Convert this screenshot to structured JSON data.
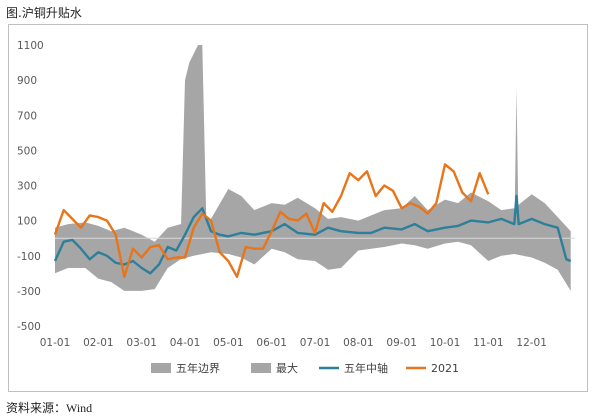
{
  "figure": {
    "title": "图.沪铜升贴水",
    "source": "资料来源：Wind"
  },
  "colors": {
    "band": "#a6a6a6",
    "max": "#a6a6a6",
    "median": "#2e7f9a",
    "y2021": "#e8751a",
    "axis": "#bfbfbf"
  },
  "chart_data": {
    "type": "area",
    "title": "",
    "xlabel": "",
    "ylabel": "",
    "ylim": [
      -500,
      1100
    ],
    "yticks": [
      -500,
      -300,
      -100,
      100,
      300,
      500,
      700,
      900,
      1100
    ],
    "xtick_labels": [
      "01-01",
      "02-01",
      "03-01",
      "04-01",
      "05-01",
      "06-01",
      "07-01",
      "08-01",
      "09-01",
      "10-01",
      "11-01",
      "12-01"
    ],
    "x_domain": [
      0,
      12
    ],
    "grid": false,
    "legend": "bottom",
    "series": [
      {
        "name": "五年边界",
        "kind": "band",
        "x": [
          0,
          0.3,
          0.7,
          1.0,
          1.3,
          1.6,
          2.0,
          2.3,
          2.6,
          2.9,
          3.2,
          3.6,
          4.0,
          4.3,
          4.6,
          5.0,
          5.3,
          5.6,
          6.0,
          6.3,
          6.6,
          7.0,
          7.3,
          7.6,
          8.0,
          8.3,
          8.6,
          9.0,
          9.3,
          9.6,
          10.0,
          10.3,
          10.6,
          11.0,
          11.3,
          11.6,
          11.9
        ],
        "upper": [
          60,
          80,
          90,
          70,
          40,
          60,
          20,
          -20,
          60,
          80,
          90,
          110,
          280,
          240,
          160,
          200,
          190,
          230,
          170,
          110,
          120,
          100,
          130,
          160,
          170,
          240,
          160,
          220,
          200,
          260,
          210,
          160,
          170,
          250,
          200,
          120,
          40
        ],
        "lower": [
          -200,
          -170,
          -170,
          -230,
          -250,
          -300,
          -300,
          -290,
          -170,
          -120,
          -100,
          -80,
          -90,
          -110,
          -150,
          -60,
          -80,
          -120,
          -130,
          -180,
          -170,
          -70,
          -60,
          -50,
          -30,
          -40,
          -60,
          -30,
          -20,
          -40,
          -130,
          -100,
          -90,
          -110,
          -140,
          -180,
          -300
        ]
      },
      {
        "name": "最大",
        "kind": "area",
        "x": [
          2.9,
          3.0,
          3.1,
          3.2,
          3.3,
          3.4,
          3.5,
          3.6,
          10.6,
          10.65,
          10.7
        ],
        "values": [
          0,
          900,
          1000,
          1050,
          1100,
          1100,
          0,
          0,
          0,
          850,
          0
        ]
      },
      {
        "name": "五年中轴",
        "kind": "line",
        "x": [
          0,
          0.2,
          0.4,
          0.6,
          0.8,
          1.0,
          1.2,
          1.4,
          1.6,
          1.8,
          2.0,
          2.2,
          2.4,
          2.6,
          2.8,
          3.0,
          3.2,
          3.4,
          3.6,
          3.8,
          4.0,
          4.3,
          4.6,
          5.0,
          5.3,
          5.6,
          6.0,
          6.3,
          6.6,
          7.0,
          7.3,
          7.6,
          8.0,
          8.3,
          8.6,
          9.0,
          9.3,
          9.6,
          10.0,
          10.3,
          10.6,
          10.65,
          10.7,
          11.0,
          11.3,
          11.6,
          11.8,
          11.9
        ],
        "values": [
          -130,
          -20,
          -10,
          -60,
          -120,
          -80,
          -100,
          -140,
          -150,
          -130,
          -170,
          -200,
          -150,
          -50,
          -70,
          20,
          120,
          170,
          40,
          20,
          10,
          30,
          20,
          40,
          80,
          30,
          20,
          60,
          40,
          30,
          30,
          60,
          50,
          80,
          40,
          60,
          70,
          100,
          90,
          110,
          80,
          240,
          80,
          110,
          80,
          60,
          -120,
          -130
        ]
      },
      {
        "name": "2021",
        "kind": "line",
        "x": [
          0,
          0.2,
          0.4,
          0.6,
          0.8,
          1.0,
          1.2,
          1.4,
          1.6,
          1.8,
          2.0,
          2.2,
          2.4,
          2.6,
          2.8,
          3.0,
          3.2,
          3.4,
          3.6,
          3.8,
          4.0,
          4.2,
          4.4,
          4.6,
          4.8,
          5.0,
          5.2,
          5.4,
          5.6,
          5.8,
          6.0,
          6.2,
          6.4,
          6.6,
          6.8,
          7.0,
          7.2,
          7.4,
          7.6,
          7.8,
          8.0,
          8.2,
          8.4,
          8.6,
          8.8,
          9.0,
          9.2,
          9.4,
          9.6,
          9.8,
          10.0
        ],
        "values": [
          20,
          160,
          110,
          60,
          130,
          120,
          100,
          20,
          -220,
          -60,
          -110,
          -50,
          -40,
          -120,
          -110,
          -110,
          60,
          140,
          100,
          -80,
          -130,
          -220,
          -50,
          -60,
          -60,
          40,
          150,
          110,
          100,
          140,
          30,
          200,
          150,
          240,
          370,
          330,
          380,
          240,
          300,
          270,
          170,
          200,
          180,
          140,
          200,
          420,
          380,
          260,
          210,
          370,
          250
        ]
      }
    ]
  }
}
